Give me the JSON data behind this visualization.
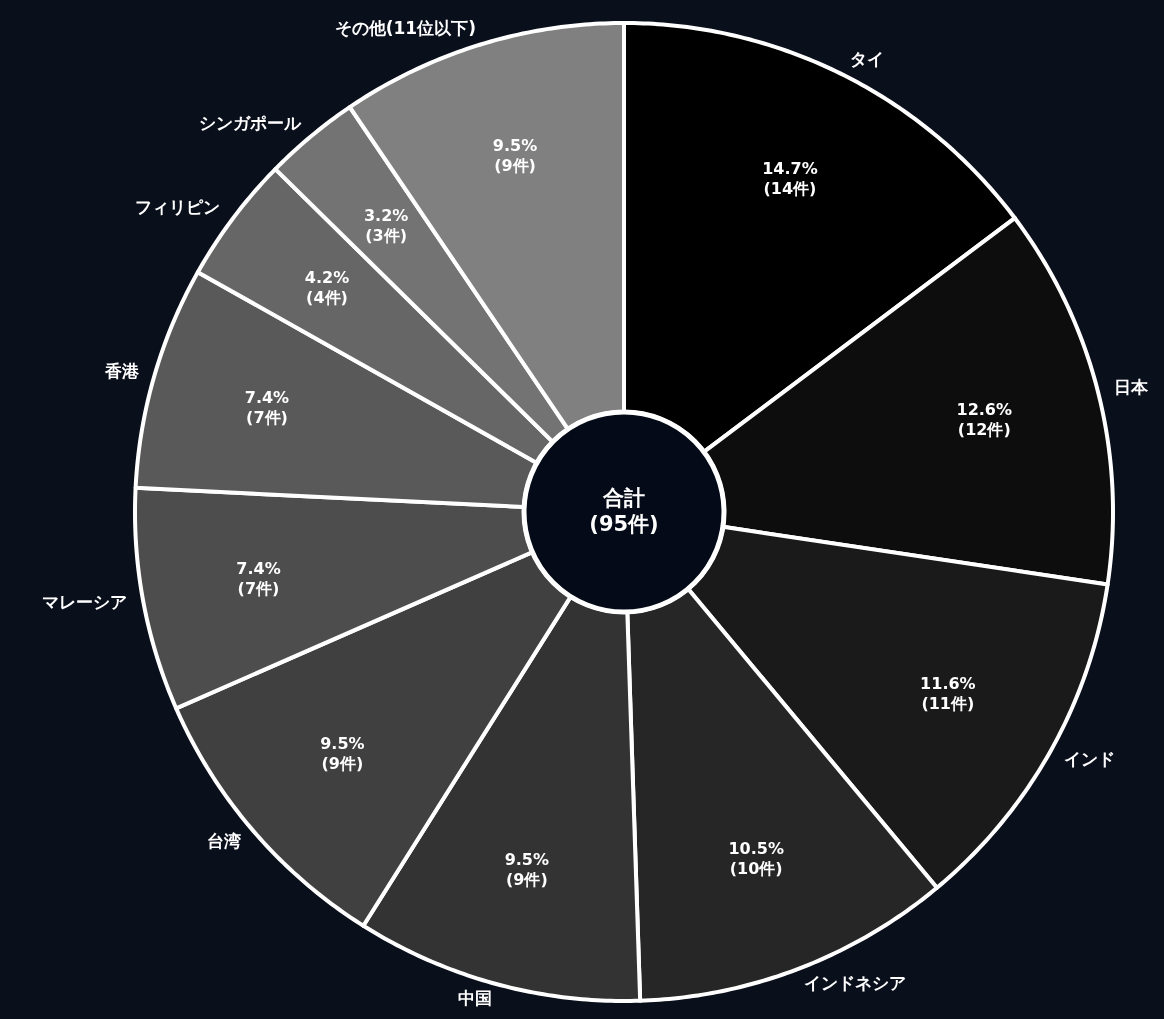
{
  "chart_data": {
    "type": "donut",
    "categories": [
      "タイ",
      "日本",
      "インド",
      "インドネシア",
      "中国",
      "台湾",
      "マレーシア",
      "香港",
      "フィリピン",
      "シンガポール",
      "その他(11位以下)"
    ],
    "values": [
      14,
      12,
      11,
      10,
      9,
      9,
      7,
      7,
      4,
      3,
      9
    ],
    "colors": [
      "#000000",
      "#0d0d0d",
      "#1a1a1a",
      "#262626",
      "#333333",
      "#404040",
      "#4d4d4d",
      "#595959",
      "#666666",
      "#737373",
      "#808080"
    ],
    "value_labels": [
      "14.7%\n(14件)",
      "12.6%\n(12件)",
      "11.6%\n(11件)",
      "10.5%\n(10件)",
      "9.5%\n(9件)",
      "9.5%\n(9件)",
      "7.4%\n(7件)",
      "7.4%\n(7件)",
      "4.2%\n(4件)",
      "3.2%\n(3件)",
      "9.5%\n(9件)"
    ],
    "annotations": [
      "合計\n(95件)"
    ]
  }
}
